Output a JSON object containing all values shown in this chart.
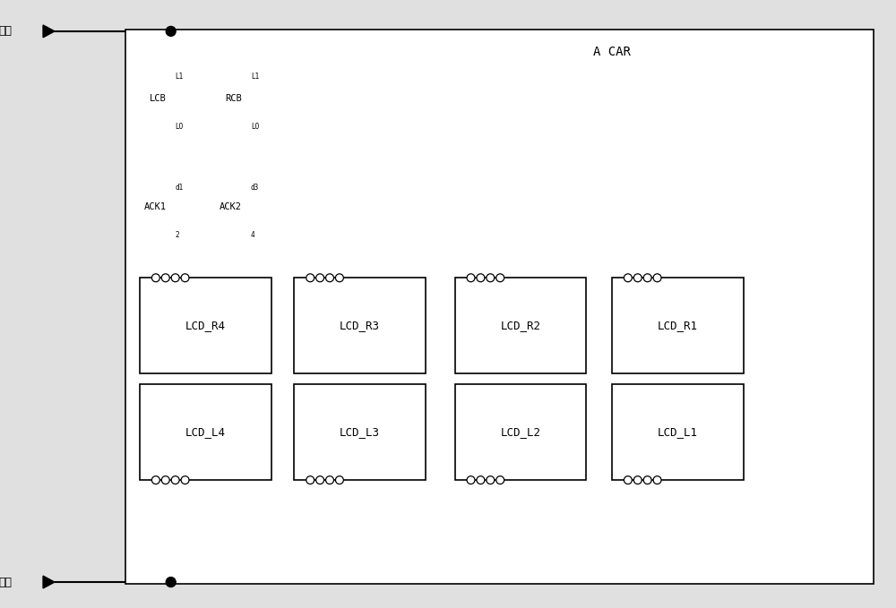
{
  "bg_color": "#e0e0e0",
  "line_color": "#000000",
  "box_bg": "#ffffff",
  "fig_width": 10.0,
  "fig_height": 6.79,
  "title": "A CAR",
  "supply_label": "供电",
  "ground_label": "接地",
  "lcb_label": "LCB",
  "rcb_label": "RCB",
  "ack1_label": "ACK1",
  "ack2_label": "ACK2",
  "top_boxes": [
    "LCD_R4",
    "LCD_R3",
    "LCD_R2",
    "LCD_R1"
  ],
  "bottom_boxes": [
    "LCD_L4",
    "LCD_L3",
    "LCD_L2",
    "LCD_L1"
  ]
}
